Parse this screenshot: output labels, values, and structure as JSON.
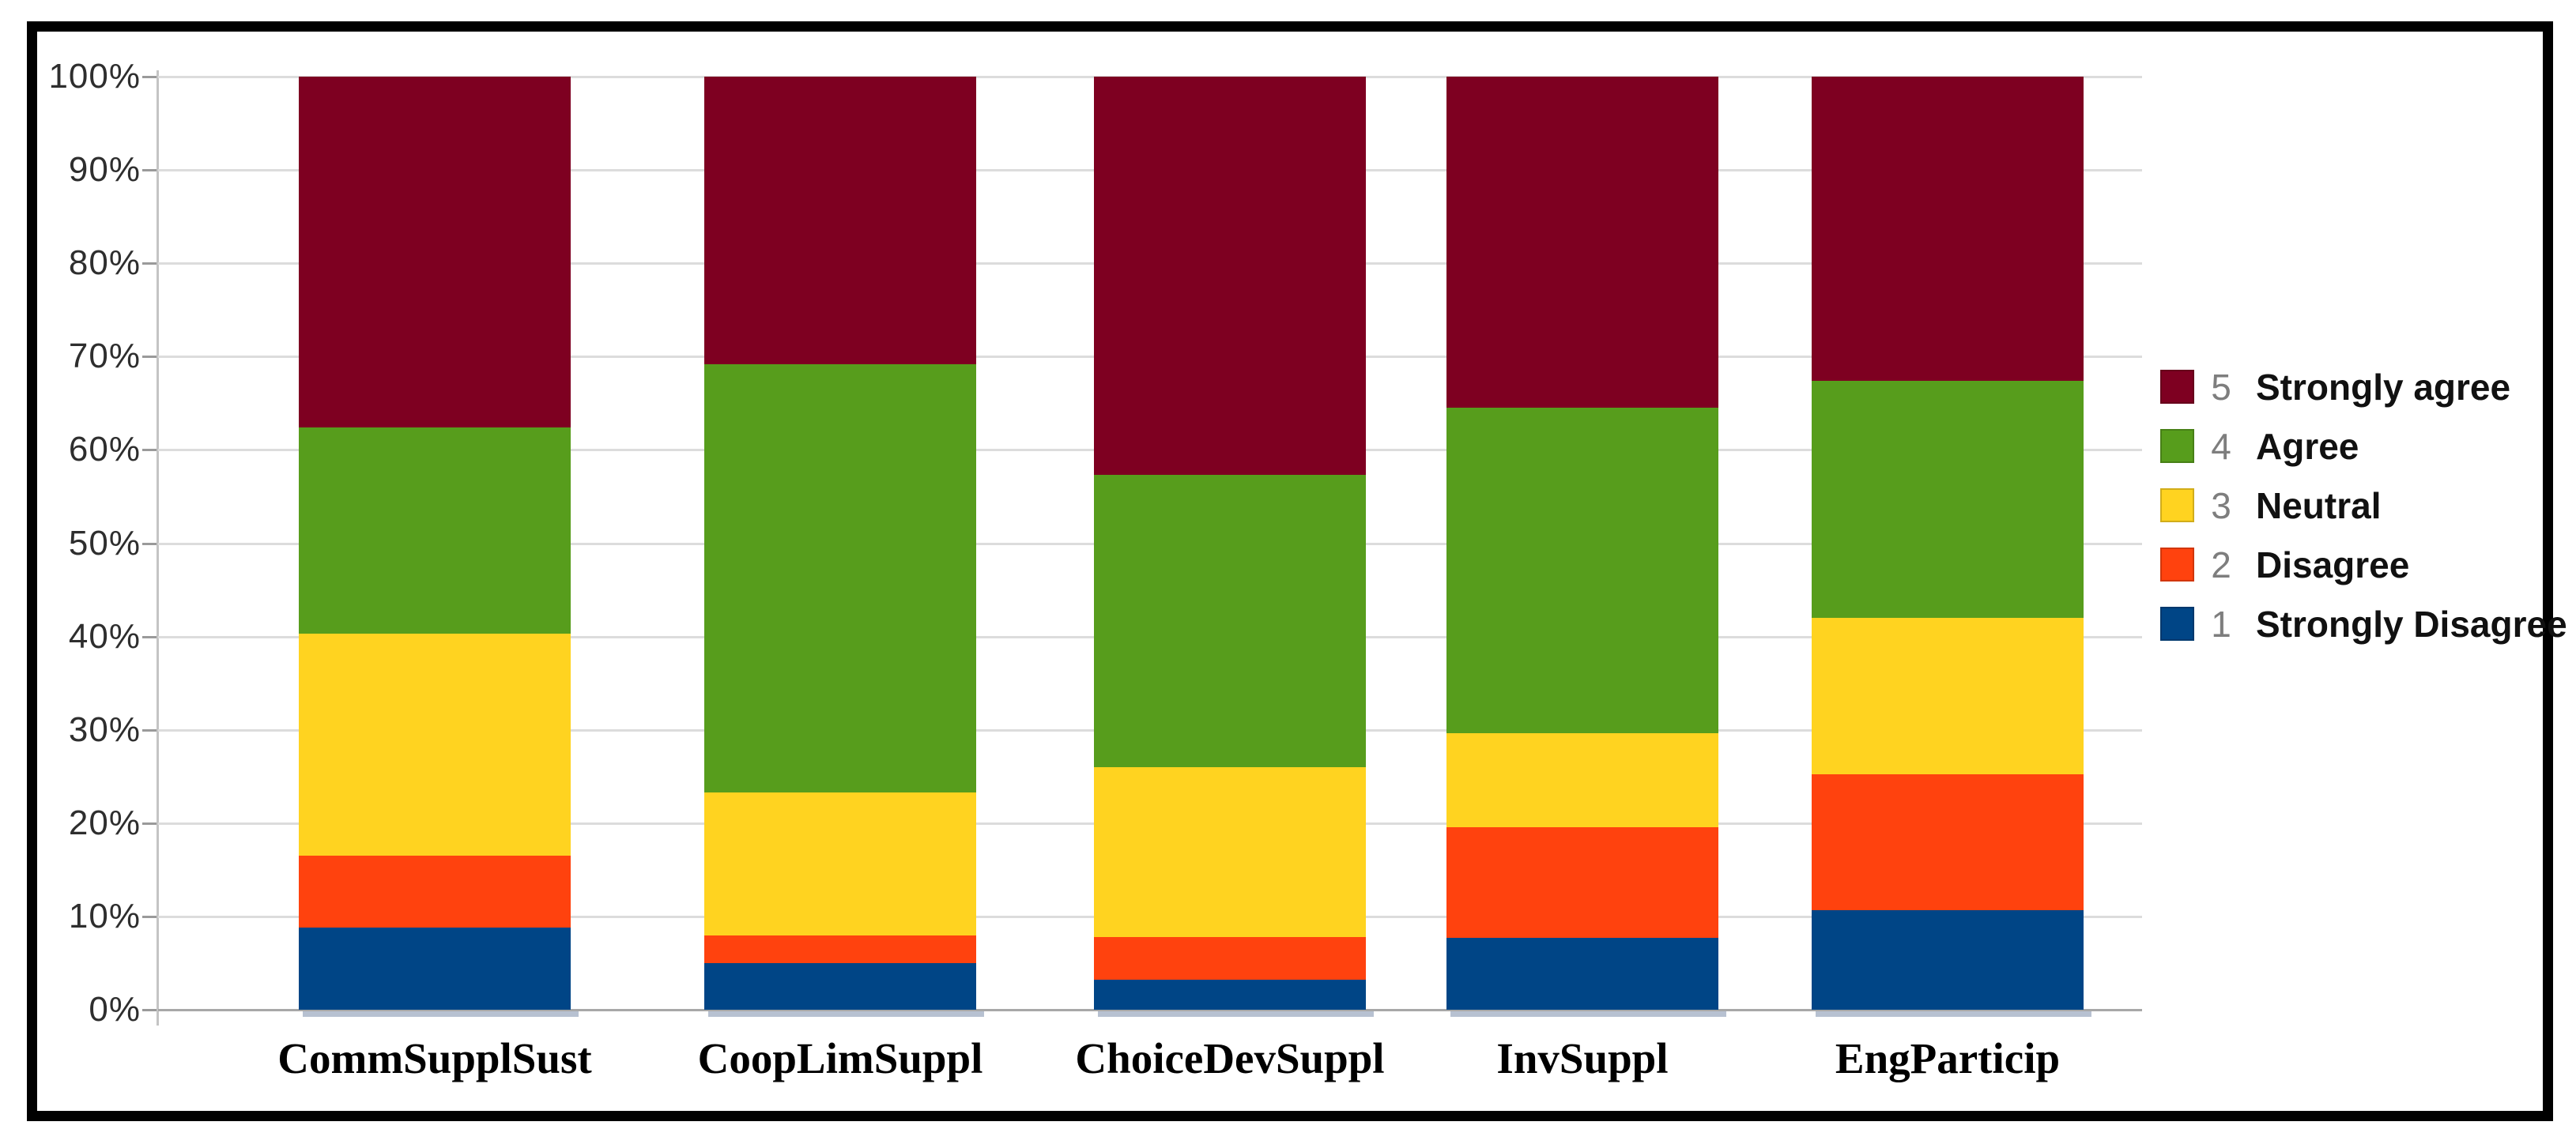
{
  "y_axis": {
    "tick_labels": [
      "0%",
      "10%",
      "20%",
      "30%",
      "40%",
      "50%",
      "60%",
      "70%",
      "80%",
      "90%",
      "100%"
    ]
  },
  "chart_data": {
    "type": "bar",
    "subtype": "stacked-percent",
    "title": "",
    "xlabel": "",
    "ylabel": "",
    "ylim": [
      0,
      100
    ],
    "grid": true,
    "legend_position": "right",
    "categories": [
      "CommSupplSust",
      "CoopLimSuppl",
      "ChoiceDevSuppl",
      "InvSuppl",
      "EngParticip"
    ],
    "series": [
      {
        "id": "1",
        "name": "Strongly Disagree",
        "color": "#004586",
        "values": [
          8.8,
          5.0,
          3.2,
          7.7,
          10.7
        ]
      },
      {
        "id": "2",
        "name": "Disagree",
        "color": "#FF420E",
        "values": [
          7.7,
          3.0,
          4.6,
          11.9,
          14.5
        ]
      },
      {
        "id": "3",
        "name": "Neutral",
        "color": "#FFD320",
        "values": [
          23.8,
          15.3,
          18.2,
          10.0,
          16.8
        ]
      },
      {
        "id": "4",
        "name": "Agree",
        "color": "#579D1C",
        "values": [
          22.1,
          45.9,
          31.3,
          34.9,
          25.4
        ]
      },
      {
        "id": "5",
        "name": "Strongly agree",
        "color": "#7E0021",
        "values": [
          37.6,
          30.8,
          42.7,
          35.5,
          32.6
        ]
      }
    ],
    "legend": [
      {
        "num": "5",
        "label": "Strongly agree",
        "color": "#7E0021"
      },
      {
        "num": "4",
        "label": "Agree",
        "color": "#579D1C"
      },
      {
        "num": "3",
        "label": "Neutral",
        "color": "#FFD320"
      },
      {
        "num": "2",
        "label": "Disagree",
        "color": "#FF420E"
      },
      {
        "num": "1",
        "label": "Strongly Disagree",
        "color": "#004586"
      }
    ]
  }
}
